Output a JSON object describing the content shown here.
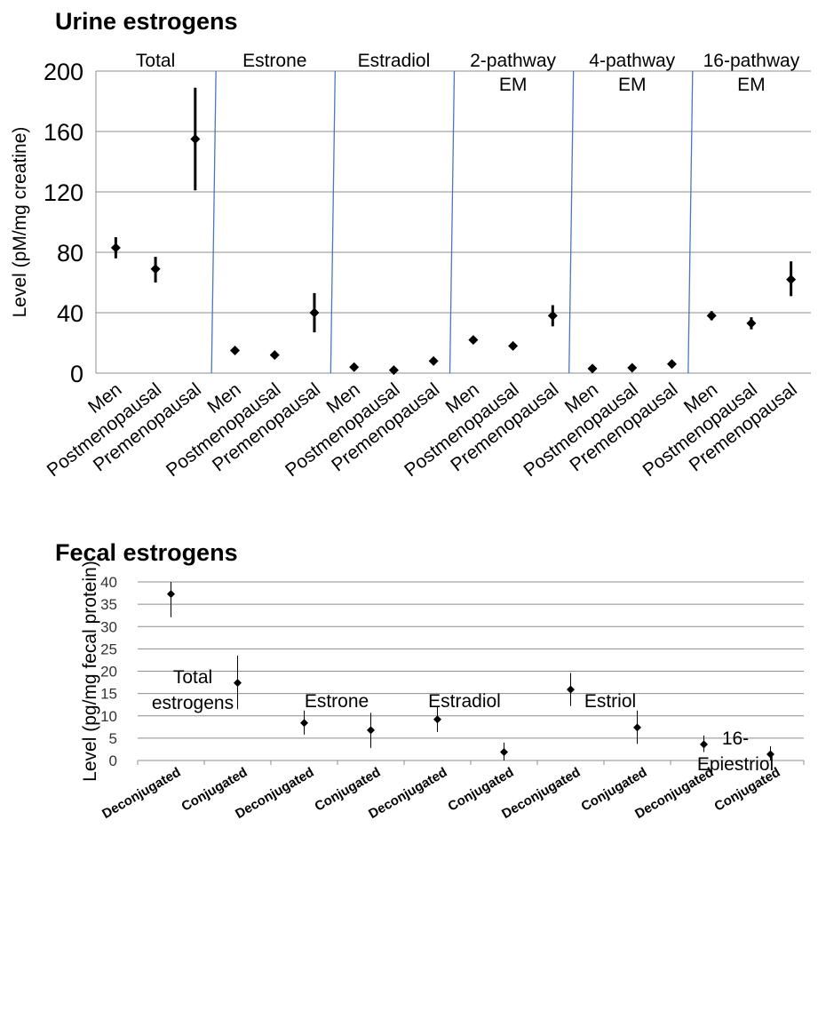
{
  "chart_data": [
    {
      "type": "scatter",
      "title": "Urine estrogens",
      "ylabel": "Level (pM/mg creatine)",
      "ylim": [
        0,
        200
      ],
      "yticks": [
        "0",
        "40",
        "80",
        "120",
        "160",
        "200"
      ],
      "grid": true,
      "groups": [
        "Total",
        "Estrone",
        "Estradiol",
        "2-pathway EM",
        "4-pathway EM",
        "16-pathway EM"
      ],
      "group_labels": [
        [
          "Total"
        ],
        [
          "Estrone"
        ],
        [
          "Estradiol"
        ],
        [
          "2-pathway",
          "EM"
        ],
        [
          "4-pathway",
          "EM"
        ],
        [
          "16-pathway",
          "EM"
        ]
      ],
      "subcategories": [
        "Men",
        "Postmenopausal",
        "Premenopausal"
      ],
      "series": [
        {
          "group": "Total",
          "values": [
            83,
            69,
            155
          ],
          "err_low": [
            76,
            60,
            121
          ],
          "err_high": [
            90,
            77,
            189
          ]
        },
        {
          "group": "Estrone",
          "values": [
            15,
            12,
            40
          ],
          "err_low": [
            15,
            12,
            27
          ],
          "err_high": [
            15,
            12,
            53
          ]
        },
        {
          "group": "Estradiol",
          "values": [
            4,
            2,
            8
          ],
          "err_low": [
            4,
            2,
            8
          ],
          "err_high": [
            4,
            2,
            8
          ]
        },
        {
          "group": "2-pathway EM",
          "values": [
            22,
            18,
            38
          ],
          "err_low": [
            22,
            18,
            31
          ],
          "err_high": [
            22,
            18,
            45
          ]
        },
        {
          "group": "4-pathway EM",
          "values": [
            3,
            3.5,
            6
          ],
          "err_low": [
            3,
            3.5,
            6
          ],
          "err_high": [
            3,
            3.5,
            6
          ]
        },
        {
          "group": "16-pathway EM",
          "values": [
            38,
            33,
            62
          ],
          "err_low": [
            35,
            29,
            51
          ],
          "err_high": [
            41,
            37,
            74
          ]
        }
      ]
    },
    {
      "type": "scatter",
      "title": "Fecal estrogens",
      "ylabel": "Level (pg/mg fecal protein)",
      "ylim": [
        0,
        40
      ],
      "yticks": [
        "0",
        "5",
        "10",
        "15",
        "20",
        "25",
        "30",
        "35",
        "40"
      ],
      "grid": true,
      "groups": [
        "Total estrogens",
        "Estrone",
        "Estradiol",
        "Estriol",
        "16-Epiestriol"
      ],
      "subcategories": [
        "Deconjugated",
        "Conjugated"
      ],
      "categories": [
        "Deconjugated",
        "Conjugated",
        "Deconjugated",
        "Conjugated",
        "Deconjugated",
        "Conjugated",
        "Deconjugated",
        "Conjugated",
        "Deconjugated",
        "Conjugated"
      ],
      "values": [
        37.3,
        17.4,
        8.4,
        6.8,
        9.2,
        1.9,
        15.9,
        7.4,
        3.6,
        1.4
      ],
      "err_low": [
        32.1,
        11.5,
        5.8,
        2.8,
        6.4,
        0,
        12.2,
        3.7,
        1.9,
        0
      ],
      "err_high": [
        40,
        23.5,
        11.2,
        10.7,
        12.1,
        4.0,
        19.6,
        11.2,
        5.6,
        3.2
      ],
      "annotations": [
        [
          "Total",
          "estrogens"
        ],
        [
          "Estrone"
        ],
        [
          "Estradiol"
        ],
        [
          "Estriol"
        ],
        [
          "16-",
          "Epiestriol"
        ]
      ]
    }
  ]
}
